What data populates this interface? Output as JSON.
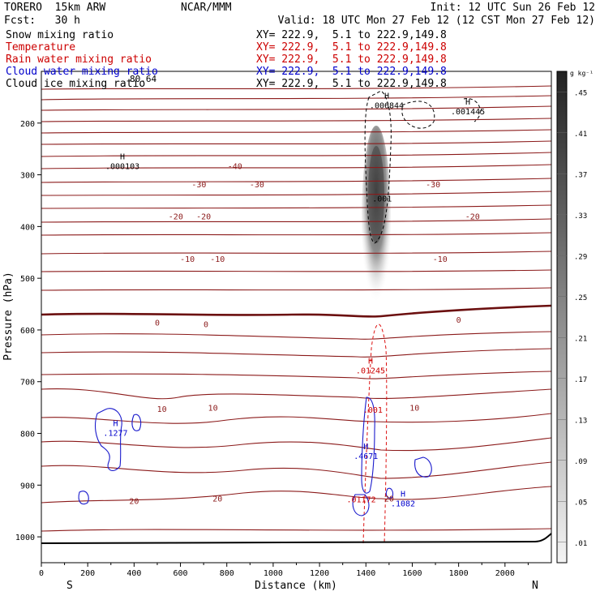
{
  "header": {
    "model": "TORERO  15km ARW",
    "center": "NCAR/MMM",
    "init": "Init: 12 UTC Sun 26 Feb 12",
    "fcst": "Fcst:   30 h",
    "valid": "Valid: 18 UTC Mon 27 Feb 12 (12 CST Mon 27 Feb 12)"
  },
  "fields": [
    {
      "name": "Snow mixing ratio",
      "xy": "XY= 222.9,  5.1 to 222.9,149.8",
      "color": "#000000"
    },
    {
      "name": "Temperature",
      "xy": "XY= 222.9,  5.1 to 222.9,149.8",
      "color": "#cc0000"
    },
    {
      "name": "Rain water mixing ratio",
      "xy": "XY= 222.9,  5.1 to 222.9,149.8",
      "color": "#cc0000"
    },
    {
      "name": "Cloud water mixing ratio",
      "xy": "XY= 222.9,  5.1 to 222.9,149.8",
      "color": "#0000cc"
    },
    {
      "name": "Cloud ice mixing ratio",
      "xy": "XY= 222.9,  5.1 to 222.9,149.8",
      "color": "#000000"
    }
  ],
  "chart_data": {
    "type": "cross-section contour",
    "xlabel": "Distance (km)",
    "ylabel": "Pressure (hPa)",
    "xlim": [
      0,
      2200
    ],
    "ylim": [
      1050,
      100
    ],
    "x_ticks": [
      0,
      200,
      400,
      600,
      800,
      1000,
      1200,
      1400,
      1600,
      1800,
      2000
    ],
    "y_ticks": [
      200,
      300,
      400,
      500,
      600,
      700,
      800,
      900,
      1000
    ],
    "x_end_labels": {
      "left": "S",
      "right": "N"
    },
    "colorbar": {
      "unit": "g kg⁻¹",
      "labels": [
        ".45",
        ".41",
        ".37",
        ".33",
        ".29",
        ".25",
        ".21",
        ".17",
        ".13",
        ".09",
        ".05",
        ".01"
      ]
    },
    "temperature_contour_labels": [
      {
        "text": "-40",
        "x": 835,
        "p": 283
      },
      {
        "text": "-30",
        "x": 680,
        "p": 318
      },
      {
        "text": "-30",
        "x": 930,
        "p": 318
      },
      {
        "text": "-30",
        "x": 1690,
        "p": 318
      },
      {
        "text": "-20",
        "x": 580,
        "p": 380
      },
      {
        "text": "-20",
        "x": 700,
        "p": 380
      },
      {
        "text": "-20",
        "x": 1860,
        "p": 380
      },
      {
        "text": "-10",
        "x": 630,
        "p": 462
      },
      {
        "text": "-10",
        "x": 760,
        "p": 462
      },
      {
        "text": "-10",
        "x": 1720,
        "p": 462
      },
      {
        "text": "0",
        "x": 500,
        "p": 585
      },
      {
        "text": "0",
        "x": 710,
        "p": 588
      },
      {
        "text": "0",
        "x": 1800,
        "p": 580
      },
      {
        "text": "10",
        "x": 520,
        "p": 752
      },
      {
        "text": "10",
        "x": 740,
        "p": 750
      },
      {
        "text": "10",
        "x": 1610,
        "p": 750
      },
      {
        "text": "20",
        "x": 400,
        "p": 930
      },
      {
        "text": "20",
        "x": 760,
        "p": 925
      },
      {
        "text": "20",
        "x": 1500,
        "p": 925
      }
    ],
    "extrema_labels": [
      {
        "mark": "H",
        "value": ".006844",
        "x": 1490,
        "p": 165,
        "field": "Snow mixing ratio"
      },
      {
        "mark": "H",
        "value": ".001445",
        "x": 1840,
        "p": 177,
        "field": "Snow mixing ratio"
      },
      {
        "mark": "H",
        "value": ".000103",
        "x": 350,
        "p": 283,
        "field": "Snow mixing ratio"
      },
      {
        "mark": "",
        "value": ".001",
        "x": 1470,
        "p": 345,
        "field": "Snow mixing ratio"
      },
      {
        "mark": "H",
        "value": ".01245",
        "x": 1420,
        "p": 678,
        "field": "Rain water mixing ratio"
      },
      {
        "mark": "",
        "value": ".001",
        "x": 1430,
        "p": 754,
        "field": "Rain water mixing ratio"
      },
      {
        "mark": "",
        "value": ".01172",
        "x": 1380,
        "p": 927,
        "field": "Rain water mixing ratio"
      },
      {
        "mark": "H",
        "value": ".1277",
        "x": 320,
        "p": 798,
        "field": "Cloud water mixing ratio"
      },
      {
        "mark": "H",
        "value": ".4671",
        "x": 1400,
        "p": 843,
        "field": "Cloud water mixing ratio"
      },
      {
        "mark": "H",
        "value": ".1082",
        "x": 1560,
        "p": 935,
        "field": "Cloud water mixing ratio"
      }
    ],
    "top_left_value": {
      "text": "80.64",
      "field": "Cloud ice mixing ratio"
    }
  }
}
